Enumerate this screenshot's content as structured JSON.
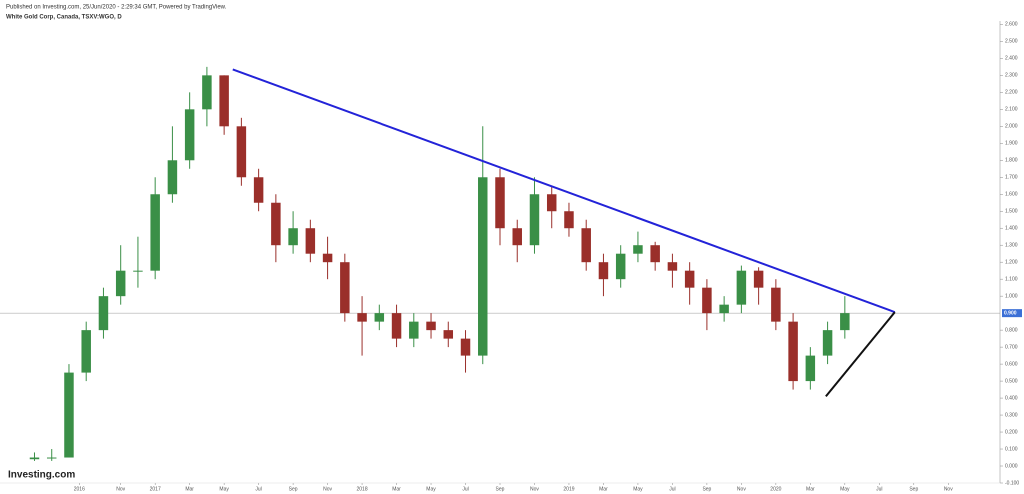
{
  "header": {
    "published": "Published on Investing.com, 25/Jun/2020 - 2:29:34 GMT, Powered by TradingView.",
    "symbol": "White Gold Corp, Canada, TSXV:WGO, D"
  },
  "watermark": "Investing.com",
  "chart_data": {
    "type": "candlestick",
    "x": [
      5,
      6,
      7,
      8,
      9,
      10,
      11,
      12,
      13,
      14,
      15,
      16,
      17,
      18,
      19,
      20,
      21,
      22,
      23,
      24,
      25,
      26,
      27,
      28,
      29,
      30,
      31,
      32,
      33,
      34,
      35,
      36,
      37,
      38,
      39,
      40,
      41,
      42,
      43,
      44,
      45,
      46,
      47,
      48,
      49,
      50,
      51,
      52
    ],
    "open": [
      0.04,
      0.05,
      0.05,
      0.55,
      0.8,
      1.0,
      1.15,
      1.15,
      1.6,
      1.8,
      2.1,
      2.3,
      2.0,
      1.7,
      1.55,
      1.3,
      1.4,
      1.25,
      1.2,
      0.9,
      0.85,
      0.9,
      0.75,
      0.85,
      0.8,
      0.75,
      0.65,
      1.7,
      1.4,
      1.3,
      1.6,
      1.5,
      1.4,
      1.2,
      1.1,
      1.25,
      1.3,
      1.2,
      1.15,
      1.05,
      0.9,
      0.95,
      1.15,
      1.05,
      0.85,
      0.5,
      0.65,
      0.8
    ],
    "high": [
      0.08,
      0.1,
      0.6,
      0.85,
      1.05,
      1.3,
      1.35,
      1.7,
      2.0,
      2.2,
      2.35,
      2.3,
      2.05,
      1.75,
      1.6,
      1.5,
      1.45,
      1.35,
      1.25,
      1.0,
      0.95,
      0.95,
      0.9,
      0.9,
      0.85,
      0.8,
      2.0,
      1.75,
      1.45,
      1.7,
      1.65,
      1.55,
      1.45,
      1.25,
      1.3,
      1.38,
      1.32,
      1.25,
      1.2,
      1.1,
      1.0,
      1.18,
      1.17,
      1.1,
      0.9,
      0.7,
      0.85,
      1.0
    ],
    "low": [
      0.03,
      0.03,
      0.05,
      0.5,
      0.75,
      0.95,
      1.05,
      1.1,
      1.55,
      1.75,
      2.0,
      1.95,
      1.65,
      1.5,
      1.2,
      1.25,
      1.2,
      1.1,
      0.85,
      0.65,
      0.8,
      0.7,
      0.7,
      0.75,
      0.7,
      0.55,
      0.6,
      1.3,
      1.2,
      1.25,
      1.4,
      1.35,
      1.15,
      1.0,
      1.05,
      1.2,
      1.15,
      1.05,
      0.95,
      0.8,
      0.85,
      0.9,
      0.95,
      0.8,
      0.45,
      0.45,
      0.6,
      0.75
    ],
    "close": [
      0.05,
      0.05,
      0.55,
      0.8,
      1.0,
      1.15,
      1.15,
      1.6,
      1.8,
      2.1,
      2.3,
      2.0,
      1.7,
      1.55,
      1.3,
      1.4,
      1.25,
      1.2,
      0.9,
      0.85,
      0.9,
      0.75,
      0.85,
      0.8,
      0.75,
      0.65,
      1.7,
      1.4,
      1.3,
      1.6,
      1.5,
      1.4,
      1.2,
      1.1,
      1.25,
      1.3,
      1.2,
      1.15,
      1.05,
      0.9,
      0.95,
      1.15,
      1.05,
      0.85,
      0.5,
      0.65,
      0.8,
      0.9
    ],
    "up_color": "#3a8f47",
    "down_color": "#9a2f2a",
    "xlim": [
      3,
      61
    ],
    "ylim": [
      -0.1,
      2.62
    ],
    "xticks": [
      {
        "value": 7.6,
        "label": "2016"
      },
      {
        "value": 10,
        "label": "Nov"
      },
      {
        "value": 12,
        "label": "2017"
      },
      {
        "value": 14,
        "label": "Mar"
      },
      {
        "value": 16,
        "label": "May"
      },
      {
        "value": 18,
        "label": "Jul"
      },
      {
        "value": 20,
        "label": "Sep"
      },
      {
        "value": 22,
        "label": "Nov"
      },
      {
        "value": 24,
        "label": "2018"
      },
      {
        "value": 26,
        "label": "Mar"
      },
      {
        "value": 28,
        "label": "May"
      },
      {
        "value": 30,
        "label": "Jul"
      },
      {
        "value": 32,
        "label": "Sep"
      },
      {
        "value": 34,
        "label": "Nov"
      },
      {
        "value": 36,
        "label": "2019"
      },
      {
        "value": 38,
        "label": "Mar"
      },
      {
        "value": 40,
        "label": "May"
      },
      {
        "value": 42,
        "label": "Jul"
      },
      {
        "value": 44,
        "label": "Sep"
      },
      {
        "value": 46,
        "label": "Nov"
      },
      {
        "value": 48,
        "label": "2020"
      },
      {
        "value": 50,
        "label": "Mar"
      },
      {
        "value": 52,
        "label": "May"
      },
      {
        "value": 54,
        "label": "Jul"
      },
      {
        "value": 56,
        "label": "Sep"
      },
      {
        "value": 58,
        "label": "Nov"
      }
    ],
    "yticks": [
      {
        "value": -0.1,
        "label": "-0.100"
      },
      {
        "value": 0,
        "label": "0.000"
      },
      {
        "value": 0.1,
        "label": "0.100"
      },
      {
        "value": 0.2,
        "label": "0.200"
      },
      {
        "value": 0.3,
        "label": "0.300"
      },
      {
        "value": 0.4,
        "label": "0.400"
      },
      {
        "value": 0.5,
        "label": "0.500"
      },
      {
        "value": 0.6,
        "label": "0.600"
      },
      {
        "value": 0.7,
        "label": "0.700"
      },
      {
        "value": 0.8,
        "label": "0.800"
      },
      {
        "value": 1.0,
        "label": "1.000"
      },
      {
        "value": 1.1,
        "label": "1.100"
      },
      {
        "value": 1.2,
        "label": "1.200"
      },
      {
        "value": 1.3,
        "label": "1.300"
      },
      {
        "value": 1.4,
        "label": "1.400"
      },
      {
        "value": 1.5,
        "label": "1.500"
      },
      {
        "value": 1.6,
        "label": "1.600"
      },
      {
        "value": 1.7,
        "label": "1.700"
      },
      {
        "value": 1.8,
        "label": "1.800"
      },
      {
        "value": 1.9,
        "label": "1.900"
      },
      {
        "value": 2.0,
        "label": "2.000"
      },
      {
        "value": 2.1,
        "label": "2.100"
      },
      {
        "value": 2.2,
        "label": "2.200"
      },
      {
        "value": 2.3,
        "label": "2.300"
      },
      {
        "value": 2.4,
        "label": "2.400"
      },
      {
        "value": 2.5,
        "label": "2.500"
      },
      {
        "value": 2.6,
        "label": "2.600"
      }
    ],
    "last_price": {
      "value": 0.9,
      "label": "0.900"
    },
    "trendlines": [
      {
        "color": "#2323d8",
        "x": [
          16.5,
          54.9
        ],
        "y": [
          2.335,
          0.906
        ]
      },
      {
        "color": "#111111",
        "x": [
          50.9,
          54.9
        ],
        "y": [
          0.41,
          0.906
        ]
      }
    ]
  }
}
